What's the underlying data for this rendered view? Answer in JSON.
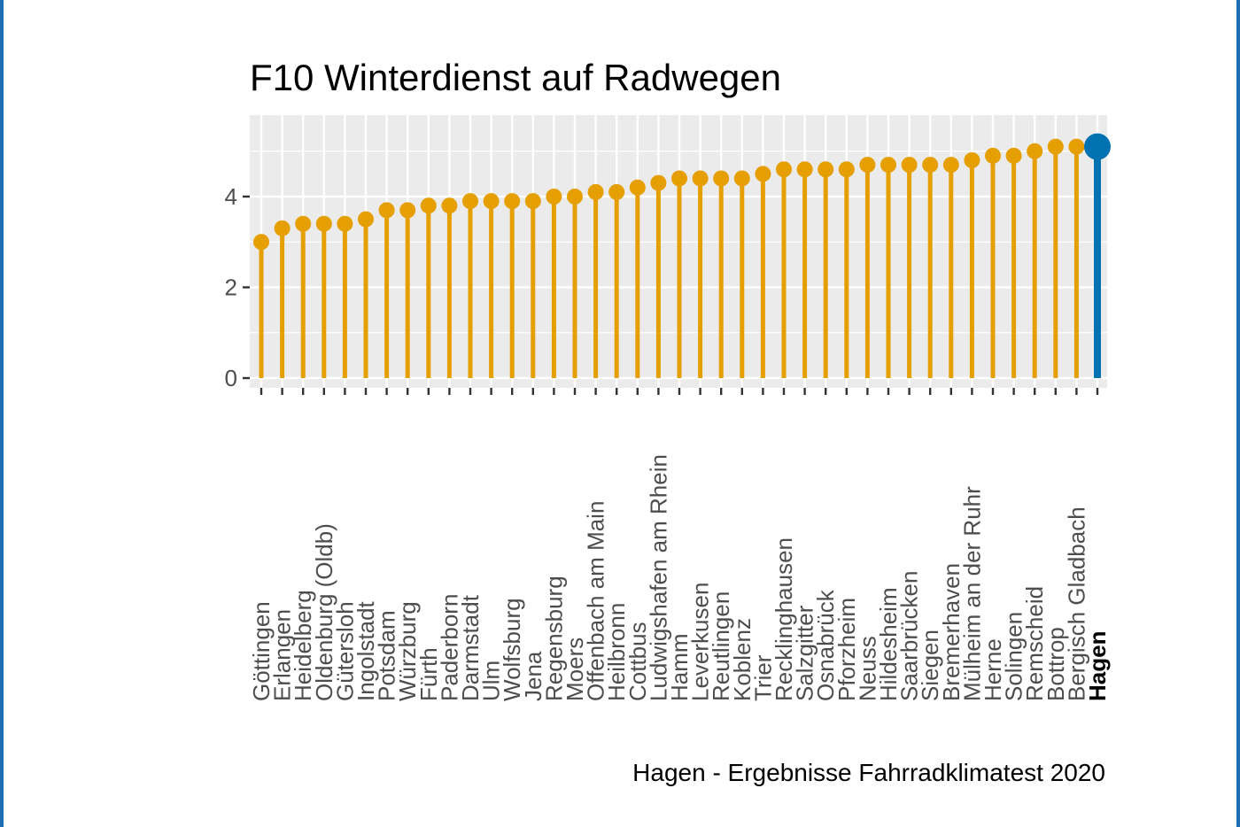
{
  "chart_data": {
    "type": "lollipop",
    "title": "F10 Winterdienst auf Radwegen",
    "caption": "Hagen - Ergebnisse Fahrradklimatest 2020",
    "xlabel": "",
    "ylabel": "",
    "ylim": [
      0,
      5.6
    ],
    "yticks": [
      0,
      2,
      4
    ],
    "grid": true,
    "highlight": "Hagen",
    "colors": {
      "default": "#E69F00",
      "highlight": "#0072B2",
      "panel": "#EBEBEB",
      "grid": "#FFFFFF"
    },
    "categories": [
      "Göttingen",
      "Erlangen",
      "Heidelberg",
      "Oldenburg (Oldb)",
      "Gütersloh",
      "Ingolstadt",
      "Potsdam",
      "Würzburg",
      "Fürth",
      "Paderborn",
      "Darmstadt",
      "Ulm",
      "Wolfsburg",
      "Jena",
      "Regensburg",
      "Moers",
      "Offenbach am Main",
      "Heilbronn",
      "Cottbus",
      "Ludwigshafen am Rhein",
      "Hamm",
      "Leverkusen",
      "Reutlingen",
      "Koblenz",
      "Trier",
      "Recklinghausen",
      "Salzgitter",
      "Osnabrück",
      "Pforzheim",
      "Neuss",
      "Hildesheim",
      "Saarbrücken",
      "Siegen",
      "Bremerhaven",
      "Mülheim an der Ruhr",
      "Herne",
      "Solingen",
      "Remscheid",
      "Bottrop",
      "Bergisch Gladbach",
      "Hagen"
    ],
    "values": [
      3.0,
      3.3,
      3.4,
      3.4,
      3.4,
      3.5,
      3.7,
      3.7,
      3.8,
      3.8,
      3.9,
      3.9,
      3.9,
      3.9,
      4.0,
      4.0,
      4.1,
      4.1,
      4.2,
      4.3,
      4.4,
      4.4,
      4.4,
      4.4,
      4.5,
      4.6,
      4.6,
      4.6,
      4.6,
      4.7,
      4.7,
      4.7,
      4.7,
      4.7,
      4.8,
      4.9,
      4.9,
      5.0,
      5.1,
      5.1,
      5.1
    ]
  }
}
